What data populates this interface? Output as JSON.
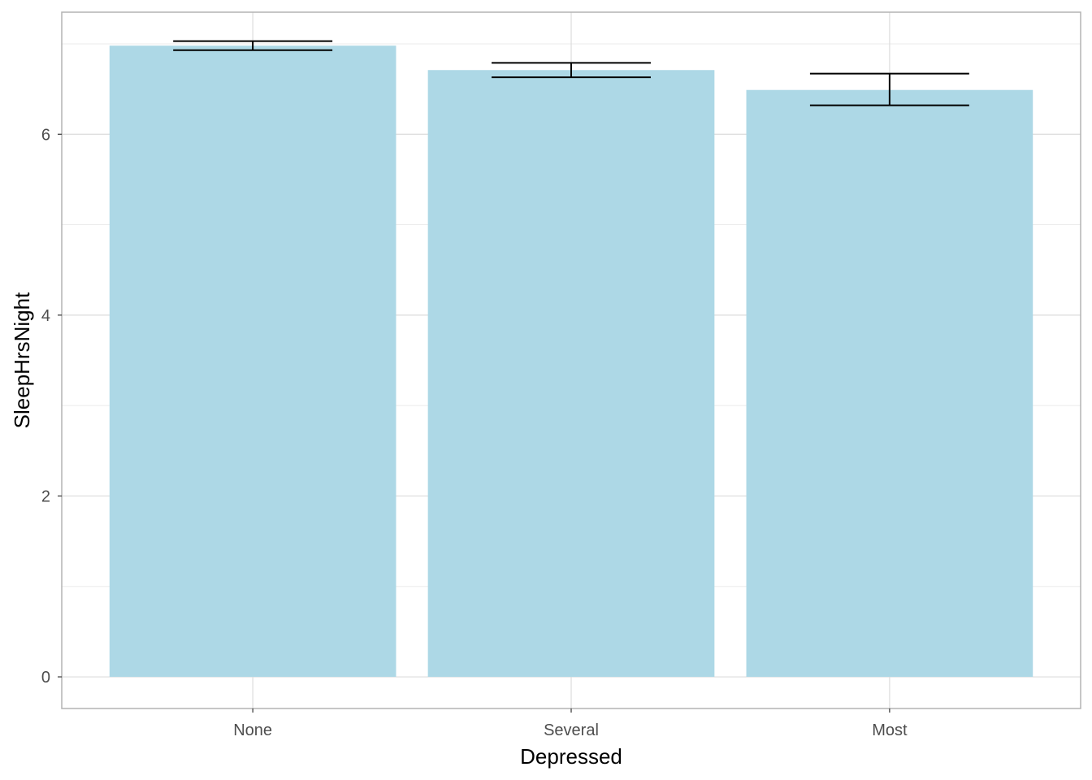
{
  "chart_data": {
    "type": "bar",
    "title": "",
    "xlabel": "Depressed",
    "ylabel": "SleepHrsNight",
    "categories": [
      "None",
      "Several",
      "Most"
    ],
    "values": [
      6.98,
      6.71,
      6.49
    ],
    "error_bars": [
      {
        "low": 6.93,
        "high": 7.03
      },
      {
        "low": 6.63,
        "high": 6.79
      },
      {
        "low": 6.32,
        "high": 6.67
      }
    ],
    "ylim": [
      -0.35,
      7.35
    ],
    "yticks": [
      0,
      2,
      4,
      6
    ],
    "ytick_labels": [
      "0",
      "2",
      "4",
      "6"
    ],
    "grid": true,
    "legend": "none",
    "colors": {
      "bar": "#add8e6",
      "error_bar": "#000000",
      "grid": "#ebebeb",
      "panel_border": "#b3b3b3",
      "tick_text": "#4d4d4d"
    }
  }
}
